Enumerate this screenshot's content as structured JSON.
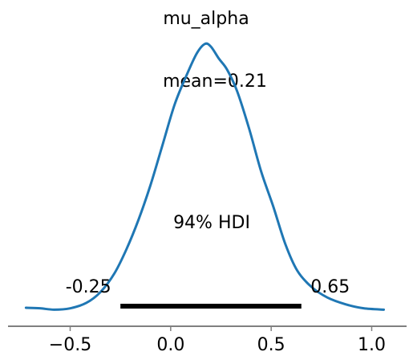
{
  "chart_data": {
    "type": "area",
    "title": "mu_alpha",
    "mean_label": "mean=0.21",
    "hdi_label": "94% HDI",
    "hdi": {
      "low": -0.25,
      "high": 0.65,
      "low_label": "-0.25",
      "high_label": "0.65"
    },
    "x_ticks": [
      {
        "value": -0.5,
        "label": "−0.5"
      },
      {
        "value": 0.0,
        "label": "0.0"
      },
      {
        "value": 0.5,
        "label": "0.5"
      },
      {
        "value": 1.0,
        "label": "1.0"
      }
    ],
    "xlim": [
      -0.72,
      1.06
    ],
    "ylim": [
      0,
      1.0
    ],
    "series": [
      {
        "values": [
          {
            "x": -0.72,
            "y": 0.012
          },
          {
            "x": -0.65,
            "y": 0.01
          },
          {
            "x": -0.58,
            "y": 0.005
          },
          {
            "x": -0.5,
            "y": 0.01
          },
          {
            "x": -0.42,
            "y": 0.03
          },
          {
            "x": -0.35,
            "y": 0.07
          },
          {
            "x": -0.28,
            "y": 0.14
          },
          {
            "x": -0.22,
            "y": 0.23
          },
          {
            "x": -0.16,
            "y": 0.34
          },
          {
            "x": -0.1,
            "y": 0.47
          },
          {
            "x": -0.04,
            "y": 0.62
          },
          {
            "x": 0.02,
            "y": 0.77
          },
          {
            "x": 0.08,
            "y": 0.88
          },
          {
            "x": 0.13,
            "y": 0.96
          },
          {
            "x": 0.17,
            "y": 0.995
          },
          {
            "x": 0.2,
            "y": 0.985
          },
          {
            "x": 0.24,
            "y": 0.94
          },
          {
            "x": 0.28,
            "y": 0.9
          },
          {
            "x": 0.33,
            "y": 0.82
          },
          {
            "x": 0.39,
            "y": 0.68
          },
          {
            "x": 0.45,
            "y": 0.52
          },
          {
            "x": 0.51,
            "y": 0.39
          },
          {
            "x": 0.57,
            "y": 0.25
          },
          {
            "x": 0.63,
            "y": 0.15
          },
          {
            "x": 0.7,
            "y": 0.09
          },
          {
            "x": 0.78,
            "y": 0.05
          },
          {
            "x": 0.87,
            "y": 0.025
          },
          {
            "x": 0.96,
            "y": 0.01
          },
          {
            "x": 1.06,
            "y": 0.005
          }
        ]
      }
    ],
    "colors": {
      "line": "#1f77b4",
      "hdi_bar": "#000000",
      "axis": "#808080"
    },
    "grid": false
  }
}
